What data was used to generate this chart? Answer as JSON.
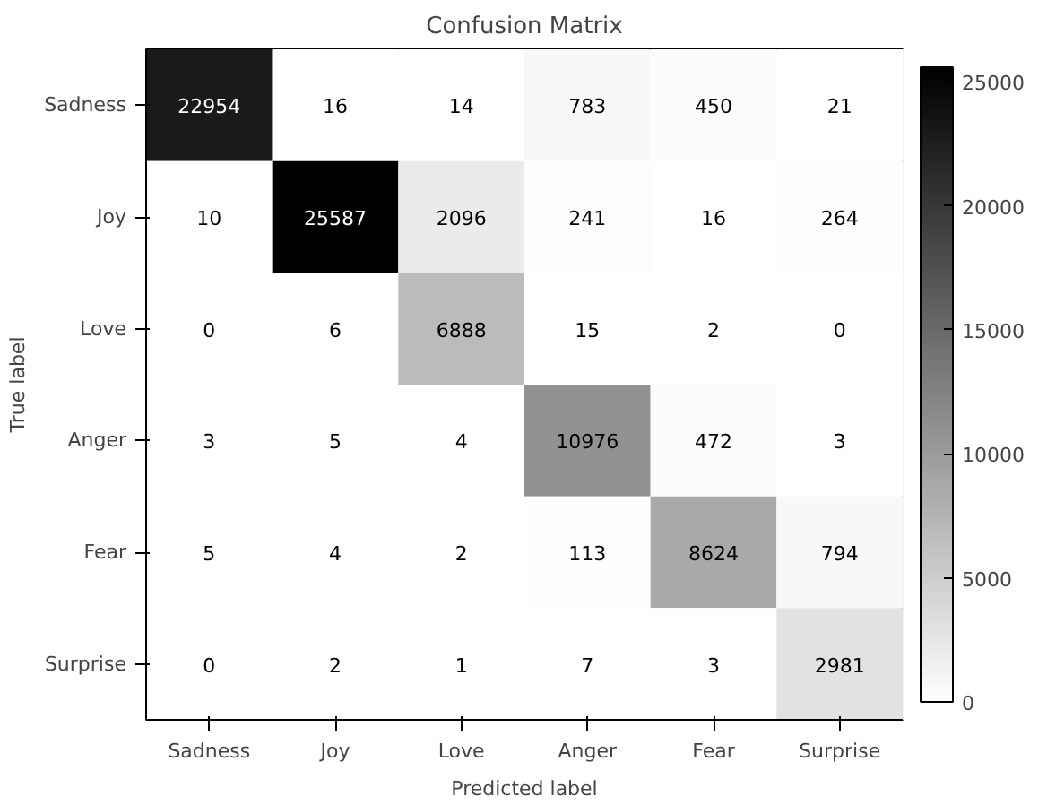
{
  "chart_data": {
    "type": "heatmap",
    "title": "Confusion Matrix",
    "xlabel": "Predicted label",
    "ylabel": "True label",
    "categories": [
      "Sadness",
      "Joy",
      "Love",
      "Anger",
      "Fear",
      "Surprise"
    ],
    "y_categories": [
      "Sadness",
      "Joy",
      "Love",
      "Anger",
      "Fear",
      "Surprise"
    ],
    "cells": [
      [
        22954,
        16,
        14,
        783,
        450,
        21
      ],
      [
        10,
        25587,
        2096,
        241,
        16,
        264
      ],
      [
        0,
        6,
        6888,
        15,
        2,
        0
      ],
      [
        3,
        5,
        4,
        10976,
        472,
        3
      ],
      [
        5,
        4,
        2,
        113,
        8624,
        794
      ],
      [
        0,
        2,
        1,
        7,
        3,
        2981
      ]
    ],
    "clim": [
      0,
      25587
    ],
    "cticks": [
      0,
      5000,
      10000,
      15000,
      20000,
      25000
    ],
    "data_labels": true
  }
}
